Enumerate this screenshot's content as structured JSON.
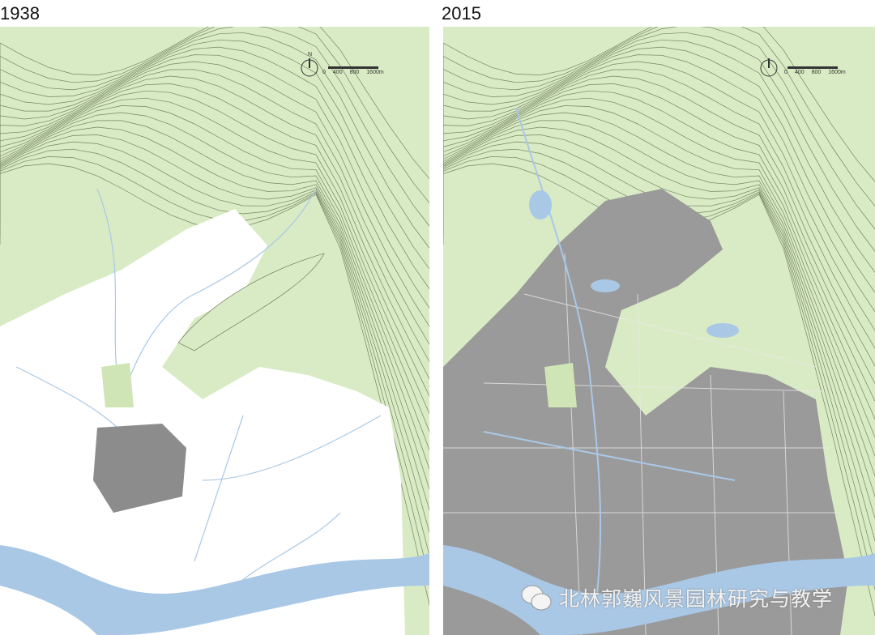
{
  "maps": [
    {
      "year": "1938",
      "urban_color": "#ffffff",
      "built_color": "#8c8c8c"
    },
    {
      "year": "2015",
      "urban_color": "#9a9a9a",
      "built_color": "#9a9a9a"
    }
  ],
  "scale_bar": {
    "north": "N",
    "ticks": [
      "0",
      "400",
      "800",
      "1600m"
    ]
  },
  "colors": {
    "vegetation": "#d9ebc4",
    "water": "#a9c8e6",
    "contour": "#5a6a4a"
  },
  "watermark": {
    "icon": "wechat-icon",
    "text": "北林郭巍风景园林研究与教学"
  }
}
